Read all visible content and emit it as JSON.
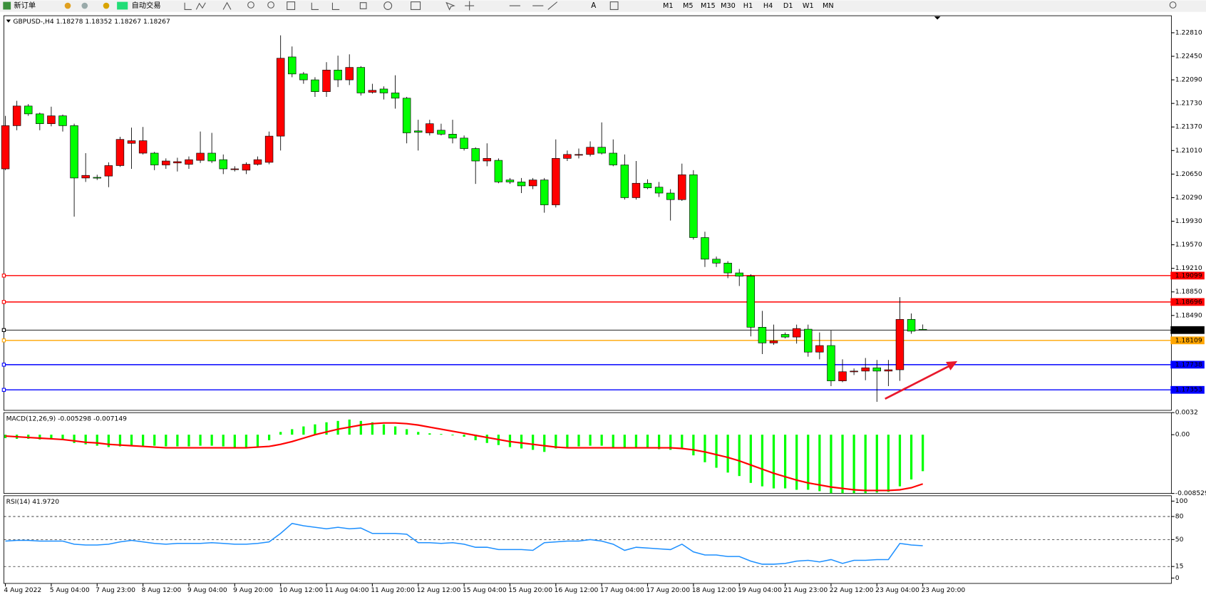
{
  "toolbar": {
    "buttons": [
      "新订单",
      "自动交易"
    ],
    "timeframes": [
      "M1",
      "M5",
      "M15",
      "M30",
      "H1",
      "H4",
      "D1",
      "W1",
      "MN"
    ]
  },
  "chart_data": [
    {
      "type": "candlestick",
      "title": "GBPUSD-,H4  1.18278 1.18352 1.18267 1.18267",
      "up_color": "#ff0000",
      "down_color": "#00ff00",
      "categories": [
        "4 Aug 2022",
        null,
        null,
        null,
        "5 Aug 04:00",
        null,
        null,
        null,
        "7 Aug 23:00",
        null,
        null,
        null,
        "8 Aug 12:00",
        null,
        null,
        null,
        "9 Aug 04:00",
        null,
        null,
        null,
        "9 Aug 20:00",
        null,
        null,
        null,
        "10 Aug 12:00",
        null,
        null,
        null,
        "11 Aug 04:00",
        null,
        null,
        null,
        "11 Aug 20:00",
        null,
        null,
        null,
        "12 Aug 12:00",
        null,
        null,
        null,
        "15 Aug 04:00",
        null,
        null,
        null,
        "15 Aug 20:00",
        null,
        null,
        null,
        "16 Aug 12:00",
        null,
        null,
        null,
        "17 Aug 04:00",
        null,
        null,
        null,
        "17 Aug 20:00",
        null,
        null,
        null,
        "18 Aug 12:00",
        null,
        null,
        null,
        "19 Aug 04:00",
        null,
        null,
        null,
        "21 Aug 23:00",
        null,
        null,
        null,
        "22 Aug 12:00",
        null,
        null,
        null,
        "23 Aug 04:00",
        null,
        null,
        null,
        "23 Aug 20:00"
      ],
      "open": [
        1.2073,
        1.2139,
        1.2169,
        1.2157,
        1.2142,
        1.2154,
        1.2139,
        1.2059,
        1.206,
        1.2062,
        1.2078,
        1.2112,
        1.2097,
        1.2097,
        1.2079,
        1.2082,
        1.208,
        1.2086,
        1.2097,
        1.2087,
        1.2072,
        1.2071,
        1.208,
        1.2083,
        1.2123,
        1.2244,
        1.2218,
        1.2209,
        1.2191,
        1.2224,
        1.2209,
        1.2228,
        1.219,
        1.2195,
        1.2189,
        1.2181,
        1.2131,
        1.2128,
        1.2132,
        1.2126,
        1.212,
        1.2104,
        1.2085,
        1.2086,
        1.2056,
        1.2053,
        1.2047,
        1.2056,
        1.2018,
        1.2089,
        1.2094,
        1.2095,
        1.2106,
        1.2097,
        1.2079,
        1.2029,
        1.2051,
        1.2045,
        1.2036,
        1.2026,
        1.2064,
        1.1968,
        1.1935,
        1.1929,
        1.1914,
        1.1909,
        1.1831,
        1.1807,
        1.182,
        1.1816,
        1.1828,
        1.1793,
        1.1803,
        1.1749,
        1.1763,
        1.1764,
        1.1769,
        1.1764,
        1.1766,
        1.1843,
        1.18278
      ],
      "high": [
        1.2154,
        1.2177,
        1.2172,
        1.2159,
        1.2168,
        1.2156,
        1.2142,
        1.2097,
        1.2064,
        1.2083,
        1.2122,
        1.2136,
        1.2137,
        1.2099,
        1.2089,
        1.209,
        1.2092,
        1.213,
        1.2128,
        1.2095,
        1.2077,
        1.2083,
        1.2092,
        1.213,
        1.2277,
        1.226,
        1.2221,
        1.2213,
        1.2236,
        1.2246,
        1.2248,
        1.223,
        1.2203,
        1.2199,
        1.2216,
        1.2183,
        1.2148,
        1.2148,
        1.2142,
        1.2148,
        1.2124,
        1.2106,
        1.2112,
        1.2089,
        1.2059,
        1.2059,
        1.2059,
        1.2059,
        1.2118,
        1.2101,
        1.2104,
        1.2115,
        1.2144,
        1.2118,
        1.2095,
        1.2085,
        1.2057,
        1.2053,
        1.2042,
        1.2081,
        1.2071,
        1.1977,
        1.1939,
        1.1932,
        1.192,
        1.1912,
        1.1856,
        1.1835,
        1.1823,
        1.1835,
        1.1835,
        1.1823,
        1.1826,
        1.1782,
        1.1768,
        1.1784,
        1.1781,
        1.1781,
        1.1877,
        1.1852,
        1.18352
      ],
      "low": [
        1.2071,
        1.2132,
        1.2154,
        1.2132,
        1.2138,
        1.213,
        1.2,
        1.2053,
        1.2056,
        1.2045,
        1.2076,
        1.2073,
        1.2095,
        1.2071,
        1.2073,
        1.2069,
        1.2073,
        1.2082,
        1.2082,
        1.2065,
        1.2069,
        1.2065,
        1.2078,
        1.208,
        1.2101,
        1.2213,
        1.2203,
        1.2183,
        1.2183,
        1.2198,
        1.2201,
        1.2185,
        1.2188,
        1.2179,
        1.2165,
        1.2112,
        1.2101,
        1.2124,
        1.2124,
        1.2112,
        1.2101,
        1.205,
        1.2077,
        1.2051,
        1.205,
        1.2036,
        1.2042,
        1.2006,
        1.2014,
        1.2085,
        1.2089,
        1.2092,
        1.2095,
        1.2077,
        1.2026,
        1.2026,
        1.2042,
        1.203,
        1.1994,
        1.2024,
        1.1965,
        1.1923,
        1.1923,
        1.1906,
        1.1894,
        1.1817,
        1.179,
        1.1804,
        1.1814,
        1.1806,
        1.1786,
        1.1782,
        1.1741,
        1.1747,
        1.1758,
        1.175,
        1.1717,
        1.1741,
        1.1749,
        1.1821,
        1.18267
      ],
      "close": [
        1.2139,
        1.2169,
        1.2157,
        1.2142,
        1.2154,
        1.2139,
        1.2059,
        1.2063,
        1.2059,
        1.2078,
        1.2118,
        1.2116,
        1.2116,
        1.2079,
        1.2085,
        1.2084,
        1.2087,
        1.2097,
        1.2085,
        1.2073,
        1.2073,
        1.208,
        1.2087,
        1.2123,
        1.2242,
        1.2218,
        1.2209,
        1.2191,
        1.2224,
        1.2209,
        1.2228,
        1.2189,
        1.2193,
        1.2189,
        1.2181,
        1.2128,
        1.2129,
        1.2142,
        1.2126,
        1.212,
        1.2104,
        1.2085,
        1.2089,
        1.2053,
        1.2053,
        1.2047,
        1.2056,
        1.2018,
        1.2089,
        1.2095,
        1.2095,
        1.2106,
        1.2097,
        1.2079,
        1.2029,
        1.2051,
        1.2044,
        1.2036,
        1.2026,
        1.2064,
        1.1968,
        1.1935,
        1.1929,
        1.1914,
        1.1909,
        1.1831,
        1.1807,
        1.181,
        1.1816,
        1.1829,
        1.1793,
        1.1803,
        1.1749,
        1.1763,
        1.1764,
        1.1769,
        1.1764,
        1.1766,
        1.1843,
        1.1825,
        1.18267
      ],
      "ylim": [
        1.1704,
        1.2307
      ],
      "yticks": [
        {
          "value": 1.2281,
          "label": "1.22810"
        },
        {
          "value": 1.2245,
          "label": "1.22450"
        },
        {
          "value": 1.2209,
          "label": "1.22090"
        },
        {
          "value": 1.2173,
          "label": "1.21730"
        },
        {
          "value": 1.2137,
          "label": "1.21370"
        },
        {
          "value": 1.2101,
          "label": "1.21010"
        },
        {
          "value": 1.2065,
          "label": "1.20650"
        },
        {
          "value": 1.2029,
          "label": "1.20290"
        },
        {
          "value": 1.1993,
          "label": "1.19930"
        },
        {
          "value": 1.1957,
          "label": "1.19570"
        },
        {
          "value": 1.1921,
          "label": "1.19210"
        },
        {
          "value": 1.1885,
          "label": "1.18850"
        },
        {
          "value": 1.1849,
          "label": "1.18490"
        }
      ],
      "hlines": [
        {
          "value": 1.19099,
          "color": "#ff0000"
        },
        {
          "value": 1.18696,
          "color": "#ff0000"
        },
        {
          "value": 1.18267,
          "color": "#000000"
        },
        {
          "value": 1.18109,
          "color": "#ffa500"
        },
        {
          "value": 1.17738,
          "color": "#0000ff"
        },
        {
          "value": 1.17353,
          "color": "#0000ff"
        }
      ]
    },
    {
      "type": "macd",
      "title": "MACD(12,26,9) -0.005298 -0.007149",
      "histogram": {
        "color": "#00ff00",
        "values": [
          -0.0005,
          -0.0006,
          -0.0006,
          -0.0007,
          -0.0007,
          -0.0008,
          -0.0012,
          -0.0014,
          -0.0016,
          -0.0018,
          -0.0017,
          -0.0016,
          -0.0016,
          -0.0016,
          -0.0017,
          -0.0017,
          -0.0017,
          -0.0016,
          -0.0016,
          -0.0017,
          -0.0018,
          -0.0018,
          -0.0017,
          -0.0008,
          0.0004,
          0.0008,
          0.0012,
          0.0015,
          0.0018,
          0.002,
          0.0022,
          0.002,
          0.0018,
          0.0015,
          0.0012,
          0.0008,
          0.0004,
          0.0002,
          0.0001,
          -0.0001,
          -0.0003,
          -0.0008,
          -0.0012,
          -0.0015,
          -0.0018,
          -0.002,
          -0.0022,
          -0.0025,
          -0.002,
          -0.0018,
          -0.0017,
          -0.0016,
          -0.0016,
          -0.0018,
          -0.002,
          -0.002,
          -0.002,
          -0.0021,
          -0.0022,
          -0.002,
          -0.003,
          -0.004,
          -0.0048,
          -0.0055,
          -0.006,
          -0.007,
          -0.0075,
          -0.0078,
          -0.0078,
          -0.008,
          -0.008,
          -0.0082,
          -0.0085,
          -0.0085,
          -0.0085,
          -0.0085,
          -0.0084,
          -0.0083,
          -0.0075,
          -0.0065,
          -0.005298
        ]
      },
      "signal": {
        "color": "#ff0000",
        "values": [
          -0.0002,
          -0.0003,
          -0.0004,
          -0.0005,
          -0.0006,
          -0.0007,
          -0.0009,
          -0.0011,
          -0.0012,
          -0.0014,
          -0.0015,
          -0.0016,
          -0.0017,
          -0.0018,
          -0.0019,
          -0.0019,
          -0.0019,
          -0.0019,
          -0.0019,
          -0.0019,
          -0.0019,
          -0.0019,
          -0.0018,
          -0.0017,
          -0.0014,
          -0.001,
          -0.0005,
          0.0,
          0.0004,
          0.0008,
          0.0011,
          0.0014,
          0.0016,
          0.0017,
          0.0017,
          0.0016,
          0.0014,
          0.0011,
          0.0008,
          0.0005,
          0.0002,
          -0.0001,
          -0.0004,
          -0.0007,
          -0.001,
          -0.0012,
          -0.0014,
          -0.0016,
          -0.0018,
          -0.0019,
          -0.0019,
          -0.0019,
          -0.0019,
          -0.0019,
          -0.0019,
          -0.0019,
          -0.0019,
          -0.0019,
          -0.0019,
          -0.002,
          -0.0022,
          -0.0025,
          -0.0029,
          -0.0033,
          -0.0038,
          -0.0044,
          -0.005,
          -0.0056,
          -0.0061,
          -0.0066,
          -0.007,
          -0.0073,
          -0.0076,
          -0.0078,
          -0.008,
          -0.0081,
          -0.0081,
          -0.0081,
          -0.008,
          -0.0077,
          -0.007149
        ]
      },
      "ylim": [
        -0.008529,
        0.0032
      ],
      "yticks": [
        0.0032,
        {
          "value": 0,
          "label": "0.00"
        },
        -0.008529
      ]
    },
    {
      "type": "line",
      "title": "RSI(14) 41.9720",
      "color": "#1e90ff",
      "values": [
        48,
        49,
        49,
        48,
        48,
        48,
        44,
        43,
        43,
        44,
        47,
        49,
        47,
        45,
        44,
        45,
        45,
        45,
        46,
        45,
        44,
        44,
        45,
        47,
        58,
        71,
        68,
        66,
        64,
        66,
        64,
        65,
        58,
        58,
        58,
        57,
        46,
        46,
        45,
        46,
        44,
        40,
        40,
        37,
        37,
        37,
        36,
        46,
        47,
        48,
        48,
        50,
        48,
        44,
        36,
        40,
        39,
        38,
        37,
        44,
        34,
        30,
        30,
        28,
        28,
        22,
        18,
        18,
        19,
        22,
        23,
        21,
        24,
        19,
        23,
        23,
        24,
        24,
        45,
        43,
        41.972
      ],
      "ylim": [
        0,
        100
      ],
      "yticks": [
        100,
        80,
        50,
        15,
        0
      ]
    }
  ]
}
